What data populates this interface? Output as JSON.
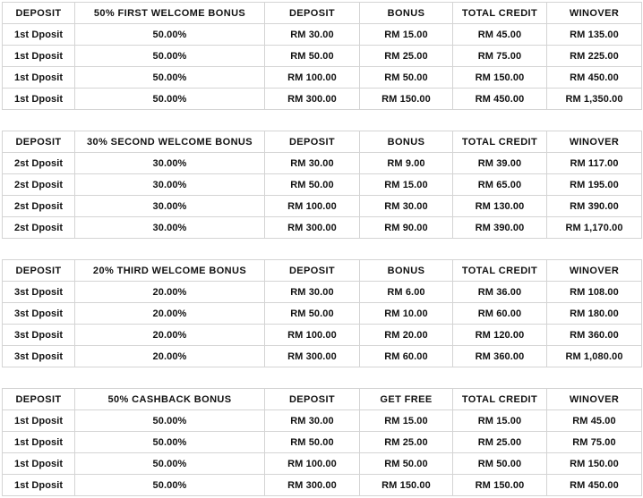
{
  "tables": [
    {
      "headers": [
        "DEPOSIT",
        "50% FIRST WELCOME BONUS",
        "DEPOSIT",
        "BONUS",
        "TOTAL CREDIT",
        "WINOVER"
      ],
      "rows": [
        [
          "1st Dposit",
          "50.00%",
          "RM 30.00",
          "RM 15.00",
          "RM 45.00",
          "RM 135.00"
        ],
        [
          "1st Dposit",
          "50.00%",
          "RM 50.00",
          "RM 25.00",
          "RM 75.00",
          "RM 225.00"
        ],
        [
          "1st Dposit",
          "50.00%",
          "RM 100.00",
          "RM 50.00",
          "RM 150.00",
          "RM 450.00"
        ],
        [
          "1st Dposit",
          "50.00%",
          "RM 300.00",
          "RM 150.00",
          "RM 450.00",
          "RM 1,350.00"
        ]
      ]
    },
    {
      "headers": [
        "DEPOSIT",
        "30% SECOND WELCOME BONUS",
        "DEPOSIT",
        "BONUS",
        "TOTAL CREDIT",
        "WINOVER"
      ],
      "rows": [
        [
          "2st Dposit",
          "30.00%",
          "RM 30.00",
          "RM 9.00",
          "RM 39.00",
          "RM 117.00"
        ],
        [
          "2st Dposit",
          "30.00%",
          "RM 50.00",
          "RM 15.00",
          "RM 65.00",
          "RM 195.00"
        ],
        [
          "2st Dposit",
          "30.00%",
          "RM 100.00",
          "RM 30.00",
          "RM 130.00",
          "RM 390.00"
        ],
        [
          "2st Dposit",
          "30.00%",
          "RM 300.00",
          "RM 90.00",
          "RM 390.00",
          "RM 1,170.00"
        ]
      ]
    },
    {
      "headers": [
        "DEPOSIT",
        "20% THIRD WELCOME BONUS",
        "DEPOSIT",
        "BONUS",
        "TOTAL CREDIT",
        "WINOVER"
      ],
      "rows": [
        [
          "3st Dposit",
          "20.00%",
          "RM 30.00",
          "RM 6.00",
          "RM 36.00",
          "RM 108.00"
        ],
        [
          "3st Dposit",
          "20.00%",
          "RM 50.00",
          "RM 10.00",
          "RM 60.00",
          "RM 180.00"
        ],
        [
          "3st Dposit",
          "20.00%",
          "RM 100.00",
          "RM 20.00",
          "RM 120.00",
          "RM 360.00"
        ],
        [
          "3st Dposit",
          "20.00%",
          "RM 300.00",
          "RM 60.00",
          "RM 360.00",
          "RM 1,080.00"
        ]
      ]
    },
    {
      "headers": [
        "DEPOSIT",
        "50% CASHBACK BONUS",
        "DEPOSIT",
        "GET FREE",
        "TOTAL CREDIT",
        "WINOVER"
      ],
      "rows": [
        [
          "1st Dposit",
          "50.00%",
          "RM 30.00",
          "RM 15.00",
          "RM 15.00",
          "RM 45.00"
        ],
        [
          "1st Dposit",
          "50.00%",
          "RM 50.00",
          "RM 25.00",
          "RM 25.00",
          "RM 75.00"
        ],
        [
          "1st Dposit",
          "50.00%",
          "RM 100.00",
          "RM 50.00",
          "RM 50.00",
          "RM 150.00"
        ],
        [
          "1st Dposit",
          "50.00%",
          "RM 300.00",
          "RM 150.00",
          "RM 150.00",
          "RM 450.00"
        ]
      ]
    }
  ],
  "colors": {
    "border": "#d4d4d4",
    "text": "#111111",
    "background": "#ffffff"
  }
}
